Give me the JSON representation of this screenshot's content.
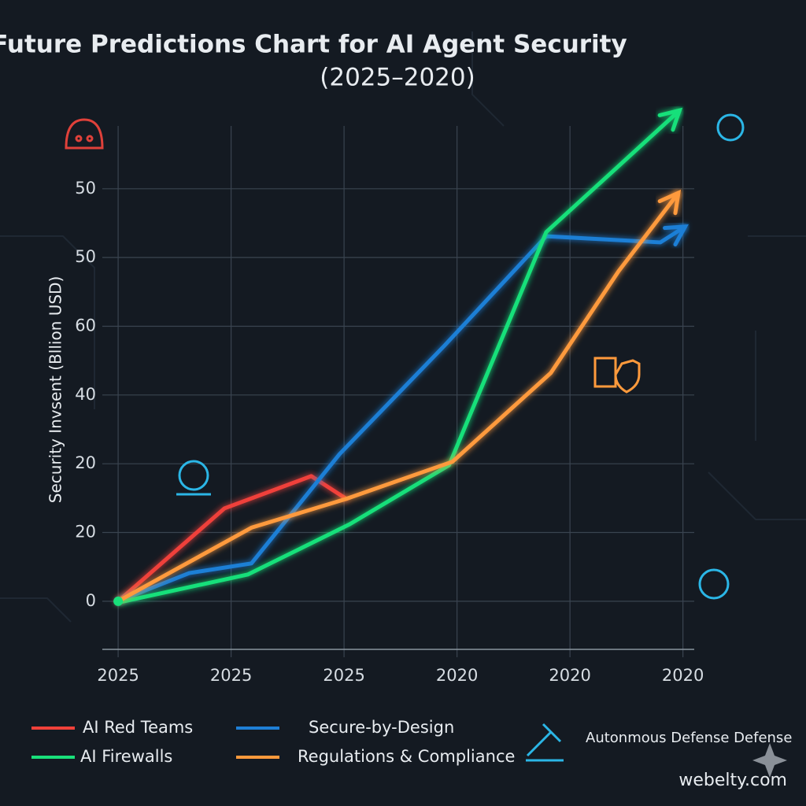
{
  "chart_data": {
    "type": "line",
    "title": "Future Predictions Chart for AI Agent Security",
    "subtitle": "(2025–2020)",
    "y_label": "Security Invsent (Bllion USD)",
    "xlim": [
      -0.14,
      5.1
    ],
    "xticks": [
      {
        "value": 0,
        "label": "2025"
      },
      {
        "value": 1,
        "label": "2025"
      },
      {
        "value": 2,
        "label": "2025"
      },
      {
        "value": 3,
        "label": "2020"
      },
      {
        "value": 4,
        "label": "2020"
      },
      {
        "value": 5,
        "label": "2020"
      }
    ],
    "ylim": [
      -7,
      72
    ],
    "yticks": [
      0,
      {
        "value": 10,
        "label": "20"
      },
      20,
      {
        "value": 30,
        "label": "40"
      },
      {
        "value": 40,
        "label": "60"
      },
      50,
      {
        "value": 60,
        "label": "50"
      }
    ],
    "grid": true,
    "series": [
      {
        "name": "AI Red Teams",
        "color": "#f0413a",
        "x": [
          0,
          0.94,
          1.71,
          2.02
        ],
        "values": [
          0,
          13.5,
          18.2,
          14.9
        ]
      },
      {
        "name": "Secure-by-Design",
        "color": "#1f7fd6",
        "x": [
          0,
          0.63,
          1.18,
          1.96,
          2.89,
          3.79,
          4.8,
          5.02
        ],
        "values": [
          0,
          4.1,
          5.5,
          21.4,
          37.2,
          53.1,
          52.2,
          54.5
        ]
      },
      {
        "name": "AI Firewalls",
        "color": "#19e07a",
        "x": [
          0,
          1.15,
          2.05,
          2.93,
          3.79,
          4.97
        ],
        "values": [
          -0.2,
          3.9,
          11.2,
          19.8,
          53.7,
          71.4
        ]
      },
      {
        "name": "Regulations & Compliance",
        "color": "#ff9a3c",
        "x": [
          0,
          1.18,
          2.02,
          2.96,
          3.83,
          4.43,
          4.96
        ],
        "values": [
          0,
          10.7,
          14.9,
          20.3,
          33.2,
          48.0,
          59.4
        ]
      }
    ],
    "annotation": "Autonmous Defense Defense",
    "watermark": "webelty.com"
  }
}
